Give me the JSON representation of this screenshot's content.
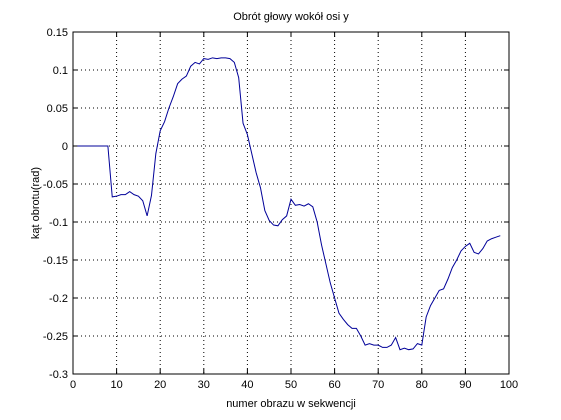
{
  "chart_data": {
    "type": "line",
    "title": "Obrót głowy wokół osi y",
    "xlabel": "numer obrazu w sekwencji",
    "ylabel": "kąt obrotu(rad)",
    "x": [
      1,
      2,
      3,
      4,
      5,
      6,
      7,
      8,
      9,
      10,
      11,
      12,
      13,
      14,
      15,
      16,
      17,
      18,
      19,
      20,
      21,
      22,
      23,
      24,
      25,
      26,
      27,
      28,
      29,
      30,
      31,
      32,
      33,
      34,
      35,
      36,
      37,
      38,
      39,
      40,
      41,
      42,
      43,
      44,
      45,
      46,
      47,
      48,
      49,
      50,
      51,
      52,
      53,
      54,
      55,
      56,
      57,
      58,
      59,
      60,
      61,
      62,
      63,
      64,
      65,
      66,
      67,
      68,
      69,
      70,
      71,
      72,
      73,
      74,
      75,
      76,
      77,
      78,
      79,
      80,
      81,
      82,
      83,
      84,
      85,
      86,
      87,
      88,
      89,
      90,
      91,
      92,
      93,
      94,
      95,
      96,
      97,
      98
    ],
    "series": [
      {
        "color": "#000099",
        "values": [
          0,
          0,
          0,
          0,
          0,
          0,
          0,
          0,
          -0.067,
          -0.066,
          -0.064,
          -0.064,
          -0.06,
          -0.064,
          -0.066,
          -0.072,
          -0.092,
          -0.065,
          -0.01,
          0.02,
          0.032,
          0.05,
          0.065,
          0.082,
          0.088,
          0.092,
          0.105,
          0.11,
          0.108,
          0.115,
          0.114,
          0.116,
          0.115,
          0.116,
          0.116,
          0.115,
          0.11,
          0.09,
          0.03,
          0.015,
          -0.01,
          -0.035,
          -0.055,
          -0.085,
          -0.098,
          -0.104,
          -0.105,
          -0.097,
          -0.092,
          -0.07,
          -0.078,
          -0.077,
          -0.079,
          -0.076,
          -0.08,
          -0.1,
          -0.13,
          -0.155,
          -0.18,
          -0.2,
          -0.22,
          -0.228,
          -0.235,
          -0.24,
          -0.24,
          -0.25,
          -0.262,
          -0.26,
          -0.262,
          -0.262,
          -0.265,
          -0.265,
          -0.262,
          -0.252,
          -0.268,
          -0.266,
          -0.268,
          -0.267,
          -0.26,
          -0.262,
          -0.225,
          -0.21,
          -0.2,
          -0.19,
          -0.188,
          -0.175,
          -0.16,
          -0.15,
          -0.138,
          -0.132,
          -0.128,
          -0.14,
          -0.142,
          -0.135,
          -0.125,
          -0.122,
          -0.12,
          -0.118
        ]
      }
    ],
    "xlim": [
      0,
      100
    ],
    "xticks": [
      0,
      10,
      20,
      30,
      40,
      50,
      60,
      70,
      80,
      90,
      100
    ],
    "ylim": [
      -0.3,
      0.15
    ],
    "yticks": [
      -0.3,
      -0.25,
      -0.2,
      -0.15,
      -0.1,
      -0.05,
      0,
      0.05,
      0.1,
      0.15
    ],
    "grid": true
  }
}
